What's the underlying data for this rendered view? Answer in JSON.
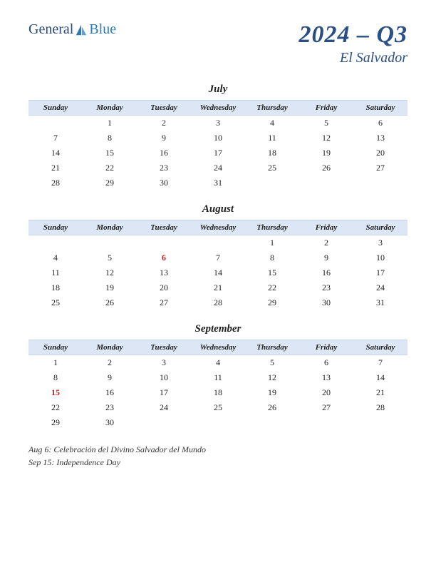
{
  "logo": {
    "part1": "General",
    "part2": "Blue"
  },
  "title": {
    "main": "2024 – Q3",
    "sub": "El Salvador"
  },
  "day_headers": [
    "Sunday",
    "Monday",
    "Tuesday",
    "Wednesday",
    "Thursday",
    "Friday",
    "Saturday"
  ],
  "header_bg": "#dce6f4",
  "header_border": "#c8d4e6",
  "title_color": "#2b4f85",
  "holiday_color": "#c02020",
  "months": [
    {
      "name": "July",
      "weeks": [
        [
          "",
          "1",
          "2",
          "3",
          "4",
          "5",
          "6"
        ],
        [
          "7",
          "8",
          "9",
          "10",
          "11",
          "12",
          "13"
        ],
        [
          "14",
          "15",
          "16",
          "17",
          "18",
          "19",
          "20"
        ],
        [
          "21",
          "22",
          "23",
          "24",
          "25",
          "26",
          "27"
        ],
        [
          "28",
          "29",
          "30",
          "31",
          "",
          "",
          ""
        ]
      ],
      "holidays": []
    },
    {
      "name": "August",
      "weeks": [
        [
          "",
          "",
          "",
          "",
          "1",
          "2",
          "3"
        ],
        [
          "4",
          "5",
          "6",
          "7",
          "8",
          "9",
          "10"
        ],
        [
          "11",
          "12",
          "13",
          "14",
          "15",
          "16",
          "17"
        ],
        [
          "18",
          "19",
          "20",
          "21",
          "22",
          "23",
          "24"
        ],
        [
          "25",
          "26",
          "27",
          "28",
          "29",
          "30",
          "31"
        ]
      ],
      "holidays": [
        "6"
      ]
    },
    {
      "name": "September",
      "weeks": [
        [
          "1",
          "2",
          "3",
          "4",
          "5",
          "6",
          "7"
        ],
        [
          "8",
          "9",
          "10",
          "11",
          "12",
          "13",
          "14"
        ],
        [
          "15",
          "16",
          "17",
          "18",
          "19",
          "20",
          "21"
        ],
        [
          "22",
          "23",
          "24",
          "25",
          "26",
          "27",
          "28"
        ],
        [
          "29",
          "30",
          "",
          "",
          "",
          "",
          ""
        ]
      ],
      "holidays": [
        "15"
      ]
    }
  ],
  "notes": [
    "Aug 6: Celebración del Divino Salvador del Mundo",
    "Sep 15: Independence Day"
  ]
}
